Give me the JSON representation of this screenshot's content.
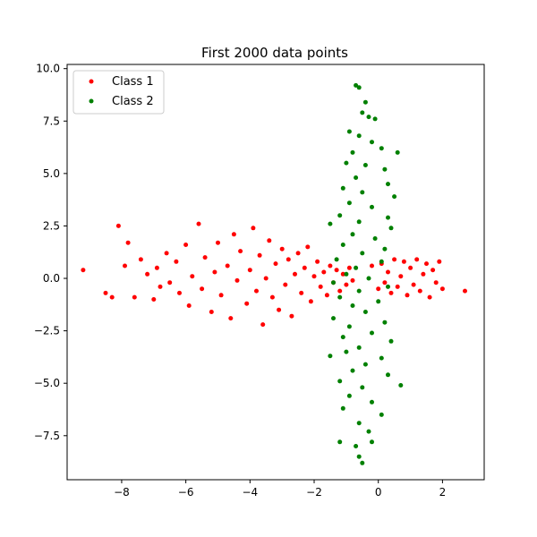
{
  "chart_data": {
    "type": "scatter",
    "title": "First 2000 data points",
    "xlabel": "",
    "ylabel": "",
    "xlim": [
      -9.7,
      3.3
    ],
    "ylim": [
      -9.6,
      10.2
    ],
    "xticks": [
      -8,
      -6,
      -4,
      -2,
      0,
      2
    ],
    "yticks": [
      -7.5,
      -5.0,
      -2.5,
      0.0,
      2.5,
      5.0,
      7.5,
      10.0
    ],
    "grid": false,
    "legend_position": "top-left",
    "series": [
      {
        "name": "Class 1",
        "color": "#ff0000",
        "points": [
          [
            -9.2,
            0.4
          ],
          [
            -8.5,
            -0.7
          ],
          [
            -8.3,
            -0.9
          ],
          [
            -8.1,
            2.5
          ],
          [
            -7.8,
            1.7
          ],
          [
            -7.9,
            0.6
          ],
          [
            -7.6,
            -0.9
          ],
          [
            -7.4,
            0.9
          ],
          [
            -7.2,
            0.2
          ],
          [
            -7.0,
            -1.0
          ],
          [
            -6.9,
            0.5
          ],
          [
            -6.8,
            -0.4
          ],
          [
            -6.6,
            1.2
          ],
          [
            -6.5,
            -0.2
          ],
          [
            -6.3,
            0.8
          ],
          [
            -6.2,
            -0.7
          ],
          [
            -6.0,
            1.6
          ],
          [
            -5.9,
            -1.3
          ],
          [
            -5.8,
            0.1
          ],
          [
            -5.6,
            2.6
          ],
          [
            -5.5,
            -0.5
          ],
          [
            -5.4,
            1.0
          ],
          [
            -5.2,
            -1.6
          ],
          [
            -5.1,
            0.3
          ],
          [
            -5.0,
            1.7
          ],
          [
            -4.9,
            -0.8
          ],
          [
            -4.7,
            0.6
          ],
          [
            -4.6,
            -1.9
          ],
          [
            -4.5,
            2.1
          ],
          [
            -4.4,
            -0.1
          ],
          [
            -4.3,
            1.3
          ],
          [
            -4.1,
            -1.2
          ],
          [
            -4.0,
            0.4
          ],
          [
            -3.9,
            2.4
          ],
          [
            -3.8,
            -0.6
          ],
          [
            -3.7,
            1.1
          ],
          [
            -3.6,
            -2.2
          ],
          [
            -3.5,
            0.0
          ],
          [
            -3.4,
            1.8
          ],
          [
            -3.3,
            -0.9
          ],
          [
            -3.2,
            0.7
          ],
          [
            -3.1,
            -1.5
          ],
          [
            -3.0,
            1.4
          ],
          [
            -2.9,
            -0.3
          ],
          [
            -2.8,
            0.9
          ],
          [
            -2.7,
            -1.8
          ],
          [
            -2.6,
            0.2
          ],
          [
            -2.5,
            1.2
          ],
          [
            -2.4,
            -0.7
          ],
          [
            -2.3,
            0.5
          ],
          [
            -2.2,
            1.5
          ],
          [
            -2.1,
            -1.1
          ],
          [
            -2.0,
            0.1
          ],
          [
            -1.9,
            0.8
          ],
          [
            -1.8,
            -0.4
          ],
          [
            -1.7,
            0.3
          ],
          [
            -1.6,
            -0.8
          ],
          [
            -1.5,
            0.6
          ],
          [
            -1.4,
            -0.2
          ],
          [
            -1.3,
            0.4
          ],
          [
            -1.2,
            -0.6
          ],
          [
            -1.1,
            0.2
          ],
          [
            -1.0,
            -0.3
          ],
          [
            -0.9,
            0.5
          ],
          [
            -0.8,
            -0.1
          ],
          [
            -0.2,
            0.6
          ],
          [
            0.0,
            -0.5
          ],
          [
            0.1,
            0.7
          ],
          [
            0.2,
            -0.2
          ],
          [
            0.3,
            0.3
          ],
          [
            0.4,
            -0.7
          ],
          [
            0.5,
            0.9
          ],
          [
            0.6,
            -0.4
          ],
          [
            0.7,
            0.1
          ],
          [
            0.8,
            0.8
          ],
          [
            0.9,
            -0.8
          ],
          [
            1.0,
            0.5
          ],
          [
            1.1,
            -0.3
          ],
          [
            1.2,
            0.9
          ],
          [
            1.3,
            -0.6
          ],
          [
            1.4,
            0.2
          ],
          [
            1.5,
            0.7
          ],
          [
            1.6,
            -0.9
          ],
          [
            1.7,
            0.4
          ],
          [
            1.8,
            -0.2
          ],
          [
            1.9,
            0.8
          ],
          [
            2.0,
            -0.5
          ],
          [
            2.7,
            -0.6
          ]
        ]
      },
      {
        "name": "Class 2",
        "color": "#008000",
        "points": [
          [
            -0.7,
            9.2
          ],
          [
            -0.6,
            9.1
          ],
          [
            -0.4,
            8.4
          ],
          [
            -0.5,
            7.9
          ],
          [
            -0.3,
            7.7
          ],
          [
            -0.1,
            7.6
          ],
          [
            -0.9,
            7.0
          ],
          [
            -0.6,
            6.8
          ],
          [
            -0.2,
            6.5
          ],
          [
            0.1,
            6.2
          ],
          [
            -0.8,
            6.0
          ],
          [
            0.6,
            6.0
          ],
          [
            -1.0,
            5.5
          ],
          [
            -0.4,
            5.4
          ],
          [
            0.2,
            5.2
          ],
          [
            -0.7,
            4.8
          ],
          [
            -1.1,
            4.3
          ],
          [
            0.3,
            4.5
          ],
          [
            -0.5,
            4.1
          ],
          [
            0.5,
            3.9
          ],
          [
            -0.9,
            3.6
          ],
          [
            -0.2,
            3.4
          ],
          [
            -1.2,
            3.0
          ],
          [
            0.3,
            2.9
          ],
          [
            -0.6,
            2.7
          ],
          [
            -1.5,
            2.6
          ],
          [
            0.4,
            2.4
          ],
          [
            -0.8,
            2.1
          ],
          [
            -0.1,
            1.9
          ],
          [
            -1.1,
            1.6
          ],
          [
            0.2,
            1.4
          ],
          [
            -0.5,
            1.2
          ],
          [
            -1.3,
            0.9
          ],
          [
            0.1,
            0.8
          ],
          [
            -0.7,
            0.5
          ],
          [
            -1.0,
            0.2
          ],
          [
            -0.3,
            0.0
          ],
          [
            -1.4,
            -0.2
          ],
          [
            0.3,
            -0.4
          ],
          [
            -0.6,
            -0.6
          ],
          [
            -1.2,
            -0.9
          ],
          [
            0.0,
            -1.1
          ],
          [
            -0.8,
            -1.3
          ],
          [
            -0.4,
            -1.6
          ],
          [
            -1.4,
            -1.9
          ],
          [
            0.2,
            -2.1
          ],
          [
            -0.9,
            -2.3
          ],
          [
            -0.2,
            -2.6
          ],
          [
            -1.1,
            -2.8
          ],
          [
            0.4,
            -3.0
          ],
          [
            -0.6,
            -3.3
          ],
          [
            -1.0,
            -3.5
          ],
          [
            0.1,
            -3.8
          ],
          [
            -1.5,
            -3.7
          ],
          [
            -0.4,
            -4.1
          ],
          [
            -0.8,
            -4.4
          ],
          [
            0.3,
            -4.6
          ],
          [
            -1.2,
            -4.9
          ],
          [
            -0.5,
            -5.2
          ],
          [
            0.7,
            -5.1
          ],
          [
            -0.9,
            -5.6
          ],
          [
            -0.2,
            -5.9
          ],
          [
            -1.1,
            -6.2
          ],
          [
            0.1,
            -6.5
          ],
          [
            -0.6,
            -6.9
          ],
          [
            -0.3,
            -7.3
          ],
          [
            -1.2,
            -7.8
          ],
          [
            -0.7,
            -8.0
          ],
          [
            -0.2,
            -7.8
          ],
          [
            -0.6,
            -8.5
          ],
          [
            -0.5,
            -8.8
          ]
        ]
      }
    ]
  }
}
